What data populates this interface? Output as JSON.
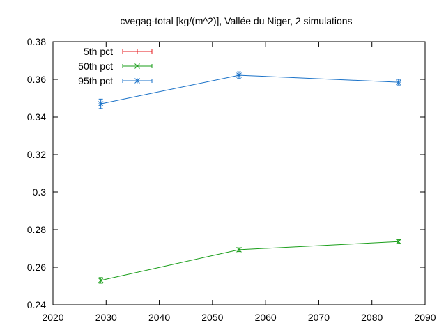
{
  "chart_data": {
    "type": "line",
    "title": "cvegag-total [kg/(m^2)], Vallée du Niger, 2 simulations",
    "xlabel": "",
    "ylabel": "",
    "xlim": [
      2020,
      2090
    ],
    "ylim": [
      0.24,
      0.38
    ],
    "xticks": [
      2020,
      2030,
      2040,
      2050,
      2060,
      2070,
      2080,
      2090
    ],
    "xtick_labels": [
      "2020",
      "2030",
      "2040",
      "2050",
      "2060",
      "2070",
      "2080",
      "2090"
    ],
    "yticks": [
      0.24,
      0.26,
      0.28,
      0.3,
      0.32,
      0.34,
      0.36,
      0.38
    ],
    "ytick_labels": [
      "0.24",
      "0.26",
      "0.28",
      "0.3",
      "0.32",
      "0.34",
      "0.36",
      "0.38"
    ],
    "grid": false,
    "legend_position": "top-left",
    "series": [
      {
        "name": "5th pct",
        "color": "#e41a1c",
        "marker": "plus",
        "x": [],
        "y": [],
        "err": []
      },
      {
        "name": "50th pct",
        "color": "#1a9e1a",
        "marker": "cross",
        "x": [
          2029,
          2055,
          2085
        ],
        "y": [
          0.253,
          0.2693,
          0.2736
        ],
        "err": [
          0.0015,
          0.001,
          0.001
        ]
      },
      {
        "name": "95th pct",
        "color": "#1a72c8",
        "marker": "star",
        "x": [
          2029,
          2055,
          2085
        ],
        "y": [
          0.347,
          0.3622,
          0.3585
        ],
        "err": [
          0.0025,
          0.0018,
          0.0015
        ]
      }
    ]
  }
}
